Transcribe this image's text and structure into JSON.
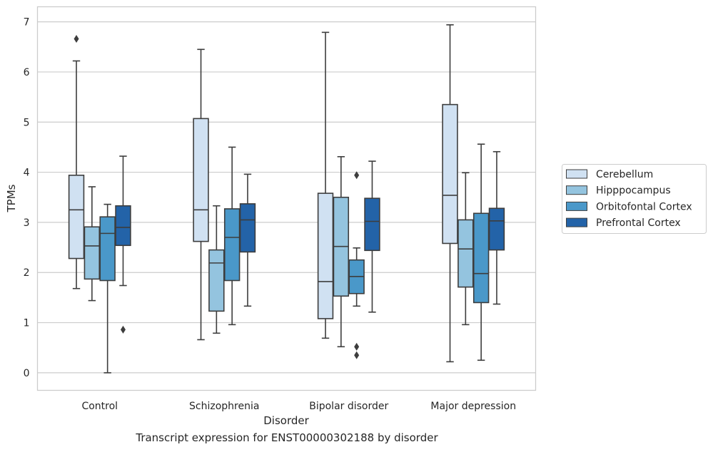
{
  "caption": "Transcript expression for ENST00000302188 by disorder",
  "chart_data": {
    "type": "box",
    "xlabel": "Disorder",
    "ylabel": "TPMs",
    "ylim": [
      -0.35,
      7.3
    ],
    "yticks": [
      0,
      1,
      2,
      3,
      4,
      5,
      6,
      7
    ],
    "grid": "horizontal",
    "legend_position": "right",
    "categories": [
      "Control",
      "Schizophrenia",
      "Bipolar disorder",
      "Major depression"
    ],
    "series": [
      {
        "name": "Cerebellum",
        "color": "#d0e1f2",
        "boxes": [
          {
            "whislo": 1.68,
            "q1": 2.28,
            "med": 3.25,
            "q3": 3.94,
            "whishi": 6.22,
            "fliers": [
              6.66
            ]
          },
          {
            "whislo": 0.66,
            "q1": 2.62,
            "med": 3.25,
            "q3": 5.07,
            "whishi": 6.45,
            "fliers": []
          },
          {
            "whislo": 0.69,
            "q1": 1.08,
            "med": 1.82,
            "q3": 3.58,
            "whishi": 6.79,
            "fliers": []
          },
          {
            "whislo": 0.22,
            "q1": 2.58,
            "med": 3.54,
            "q3": 5.35,
            "whishi": 6.94,
            "fliers": []
          }
        ]
      },
      {
        "name": "Hipppocampus",
        "color": "#94c4df",
        "boxes": [
          {
            "whislo": 1.44,
            "q1": 1.87,
            "med": 2.53,
            "q3": 2.91,
            "whishi": 3.71,
            "fliers": []
          },
          {
            "whislo": 0.79,
            "q1": 1.23,
            "med": 2.19,
            "q3": 2.45,
            "whishi": 3.33,
            "fliers": []
          },
          {
            "whislo": 0.52,
            "q1": 1.53,
            "med": 2.52,
            "q3": 3.5,
            "whishi": 4.31,
            "fliers": []
          },
          {
            "whislo": 0.96,
            "q1": 1.71,
            "med": 2.47,
            "q3": 3.05,
            "whishi": 3.99,
            "fliers": []
          }
        ]
      },
      {
        "name": "Orbitofontal Cortex",
        "color": "#4a98c9",
        "boxes": [
          {
            "whislo": 0.0,
            "q1": 1.84,
            "med": 2.78,
            "q3": 3.11,
            "whishi": 3.36,
            "fliers": []
          },
          {
            "whislo": 0.96,
            "q1": 1.84,
            "med": 2.7,
            "q3": 3.27,
            "whishi": 4.5,
            "fliers": []
          },
          {
            "whislo": 1.33,
            "q1": 1.58,
            "med": 1.92,
            "q3": 2.25,
            "whishi": 2.49,
            "fliers": [
              3.94,
              0.52,
              0.35
            ]
          },
          {
            "whislo": 0.25,
            "q1": 1.4,
            "med": 1.98,
            "q3": 3.18,
            "whishi": 4.56,
            "fliers": []
          }
        ]
      },
      {
        "name": "Prefrontal Cortex",
        "color": "#2363a8",
        "boxes": [
          {
            "whislo": 1.74,
            "q1": 2.54,
            "med": 2.9,
            "q3": 3.33,
            "whishi": 4.32,
            "fliers": [
              0.86
            ]
          },
          {
            "whislo": 1.33,
            "q1": 2.41,
            "med": 3.05,
            "q3": 3.37,
            "whishi": 3.96,
            "fliers": []
          },
          {
            "whislo": 1.21,
            "q1": 2.44,
            "med": 3.02,
            "q3": 3.48,
            "whishi": 4.22,
            "fliers": []
          },
          {
            "whislo": 1.37,
            "q1": 2.45,
            "med": 3.03,
            "q3": 3.28,
            "whishi": 4.41,
            "fliers": []
          }
        ]
      }
    ]
  }
}
